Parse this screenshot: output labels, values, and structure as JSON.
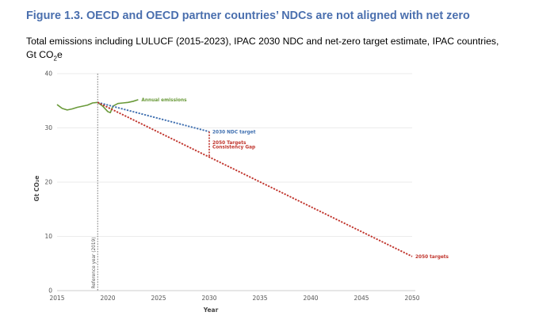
{
  "figure": {
    "title": "Figure 1.3. OECD and OECD partner countries’ NDCs are not aligned with net zero",
    "subtitle_line1": "Total emissions including LULUCF (2015-2023), IPAC 2030 NDC and net-zero target estimate, IPAC countries,",
    "subtitle_line2_prefix": "Gt CO",
    "subtitle_line2_sub": "2",
    "subtitle_line2_suffix": "e"
  },
  "chart_data": {
    "type": "line",
    "xlabel": "Year",
    "ylabel": "Gt CO₂e",
    "xlim": [
      2015,
      2050
    ],
    "ylim": [
      0,
      40
    ],
    "x_ticks": [
      2015,
      2020,
      2025,
      2030,
      2035,
      2040,
      2045,
      2050
    ],
    "y_ticks": [
      0,
      10,
      20,
      30,
      40
    ],
    "grid": "horizontal",
    "reference_line": {
      "x": 2019,
      "label": "Reference year (2019)"
    },
    "series": [
      {
        "name": "Annual emissions",
        "style": "solid",
        "color": "#6a9a3a",
        "x": [
          2015,
          2015.5,
          2016,
          2016.5,
          2017,
          2017.5,
          2018,
          2018.5,
          2019,
          2019.5,
          2020,
          2020.25,
          2020.5,
          2021,
          2021.5,
          2022,
          2022.5,
          2023
        ],
        "y": [
          34.3,
          33.6,
          33.3,
          33.5,
          33.8,
          34.0,
          34.2,
          34.6,
          34.7,
          34.0,
          33.0,
          32.8,
          34.0,
          34.5,
          34.6,
          34.7,
          34.9,
          35.2
        ]
      },
      {
        "name": "2030 NDC target",
        "style": "dashed",
        "color": "#3f6fb0",
        "x": [
          2019,
          2030
        ],
        "y": [
          34.7,
          29.3
        ]
      },
      {
        "name": "2050 targets",
        "style": "dashed",
        "color": "#c0342c",
        "x": [
          2019,
          2050
        ],
        "y": [
          34.7,
          6.3
        ]
      }
    ],
    "gap": {
      "name": "2050 Targets Consistency Gap",
      "label_line1": "2050 Targets",
      "label_line2": "Consistency Gap",
      "x": 2030,
      "y_top": 29.3,
      "y_bottom": 24.8,
      "color": "#c0342c"
    },
    "annotations": {
      "annual": "Annual emissions",
      "ndc": "2030 NDC target",
      "targets": "2050 targets"
    },
    "colors": {
      "annual": "#6a9a3a",
      "ndc": "#3f6fb0",
      "targets": "#c0342c",
      "reference": "#555555",
      "grid": "#e4e4e4"
    }
  }
}
